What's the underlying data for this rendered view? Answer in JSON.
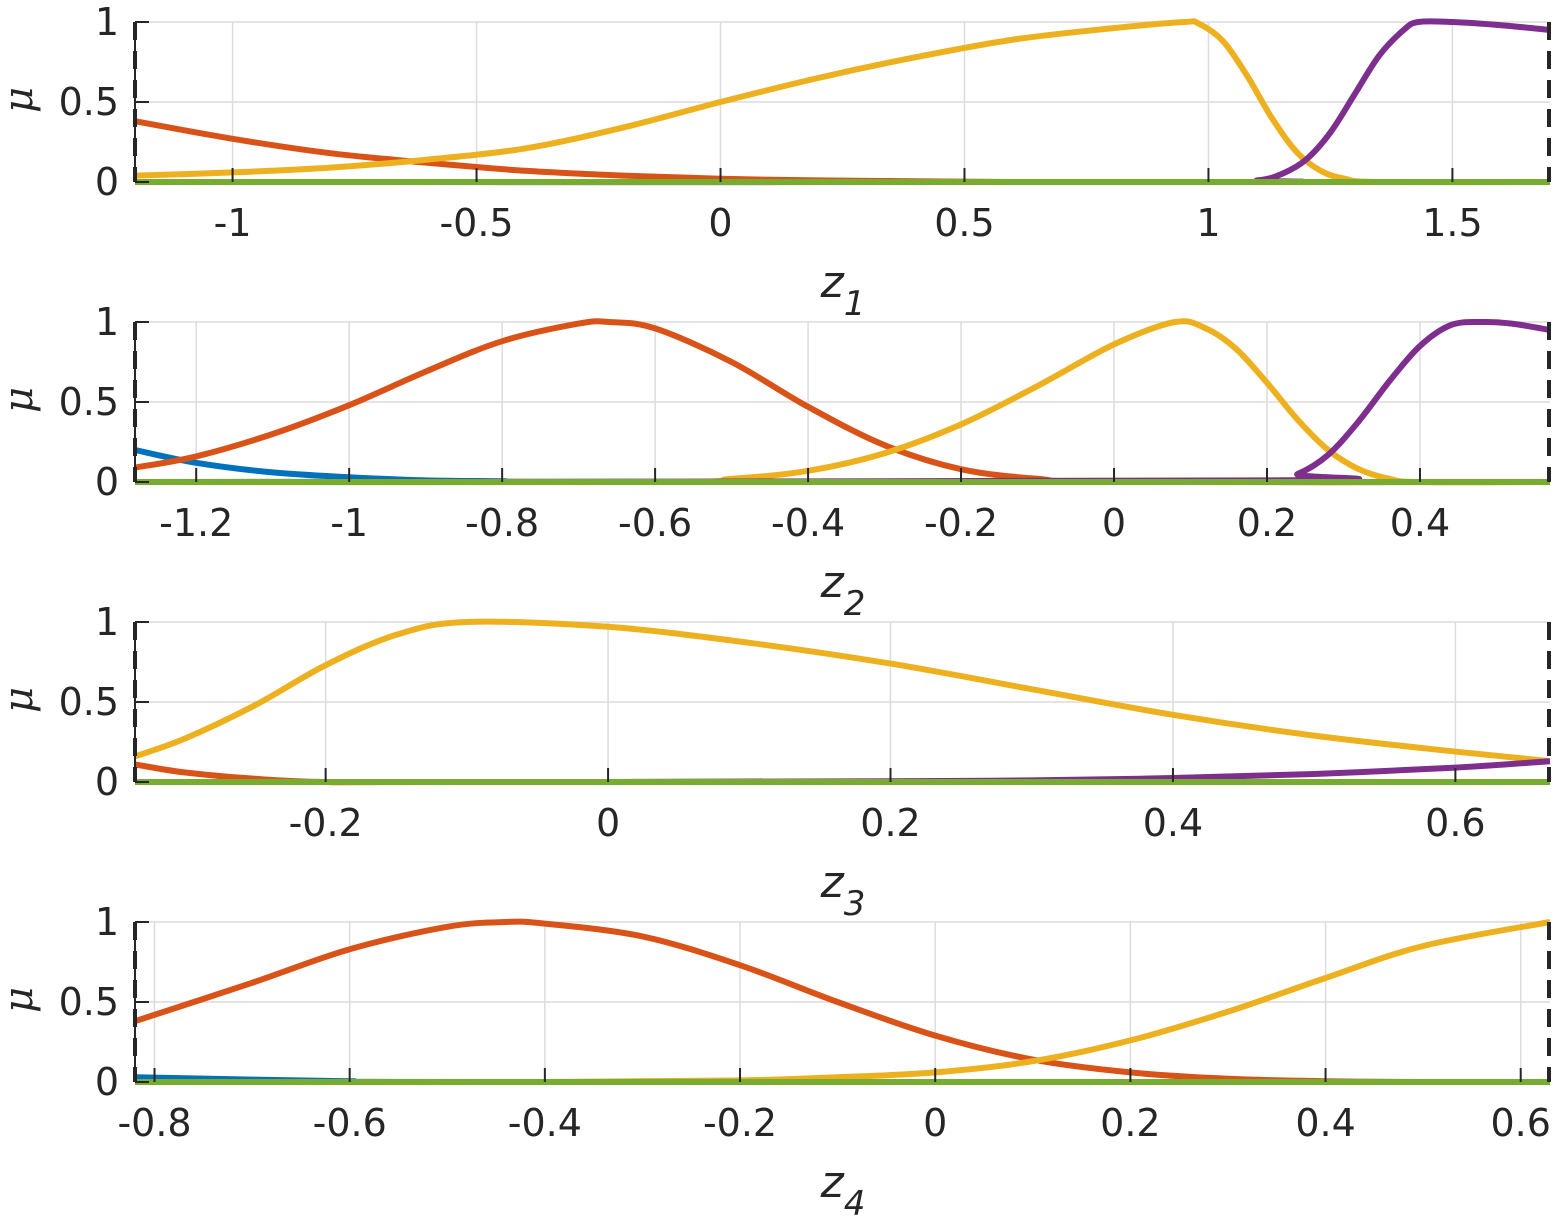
{
  "colors": {
    "grid": "#dcdcdc",
    "axis": "#262626",
    "series": [
      "#0072bd",
      "#d95319",
      "#edb120",
      "#7e2f8e",
      "#77ac30"
    ]
  },
  "chart_data": [
    {
      "type": "line",
      "xlabel": "z",
      "xlabel_sub": "1",
      "ylabel": "μ",
      "xlim": [
        -1.2,
        1.7
      ],
      "ylim": [
        0,
        1
      ],
      "xticks": [
        -1,
        -0.5,
        0,
        0.5,
        1,
        1.5
      ],
      "xticklabels": [
        "-1",
        "-0.5",
        "0",
        "0.5",
        "1",
        "1.5"
      ],
      "yticks": [
        0,
        0.5,
        1
      ],
      "yticklabels": [
        "0",
        "0.5",
        "1"
      ],
      "grid": true,
      "series": [
        {
          "x": [
            -1.2,
            1.7
          ],
          "y": [
            0,
            0
          ]
        },
        {
          "x": [
            -1.2,
            -1.0,
            -0.8,
            -0.6,
            -0.4,
            -0.2,
            0.0,
            0.2,
            0.4,
            0.6,
            1.0,
            1.7
          ],
          "y": [
            0.38,
            0.27,
            0.18,
            0.12,
            0.07,
            0.04,
            0.02,
            0.01,
            0.005,
            0.0,
            0.0,
            0.0
          ]
        },
        {
          "x": [
            -1.2,
            -1.0,
            -0.8,
            -0.6,
            -0.4,
            -0.2,
            0.0,
            0.2,
            0.4,
            0.6,
            0.8,
            0.95,
            0.98,
            1.03,
            1.08,
            1.13,
            1.18,
            1.23,
            1.28,
            1.35,
            1.7
          ],
          "y": [
            0.04,
            0.06,
            0.09,
            0.14,
            0.21,
            0.34,
            0.5,
            0.65,
            0.78,
            0.89,
            0.96,
            1.0,
            0.99,
            0.88,
            0.66,
            0.4,
            0.19,
            0.07,
            0.02,
            0.0,
            0.0
          ]
        },
        {
          "x": [
            -1.2,
            1.0,
            1.1,
            1.15,
            1.2,
            1.25,
            1.3,
            1.35,
            1.4,
            1.43,
            1.5,
            1.6,
            1.7
          ],
          "y": [
            0,
            0,
            0.01,
            0.05,
            0.14,
            0.31,
            0.55,
            0.79,
            0.95,
            1.0,
            1.0,
            0.98,
            0.95
          ]
        },
        {
          "x": [
            -1.2,
            1.7
          ],
          "y": [
            0,
            0
          ]
        }
      ]
    },
    {
      "type": "line",
      "xlabel": "z",
      "xlabel_sub": "2",
      "ylabel": "μ",
      "xlim": [
        -1.28,
        0.57
      ],
      "ylim": [
        0,
        1
      ],
      "xticks": [
        -1.2,
        -1,
        -0.8,
        -0.6,
        -0.4,
        -0.2,
        0,
        0.2,
        0.4
      ],
      "xticklabels": [
        "-1.2",
        "-1",
        "-0.8",
        "-0.6",
        "-0.4",
        "-0.2",
        "0",
        "0.2",
        "0.4"
      ],
      "yticks": [
        0,
        0.5,
        1
      ],
      "yticklabels": [
        "0",
        "0.5",
        "1"
      ],
      "grid": true,
      "series": [
        {
          "x": [
            -1.28,
            -1.2,
            -1.1,
            -1.0,
            -0.9,
            -0.8,
            -0.7,
            0.57
          ],
          "y": [
            0.2,
            0.12,
            0.06,
            0.03,
            0.01,
            0.005,
            0.0,
            0.0
          ]
        },
        {
          "x": [
            -1.28,
            -1.2,
            -1.1,
            -1.0,
            -0.9,
            -0.8,
            -0.7,
            -0.66,
            -0.6,
            -0.5,
            -0.4,
            -0.3,
            -0.2,
            -0.1,
            0.0,
            0.57
          ],
          "y": [
            0.09,
            0.16,
            0.3,
            0.48,
            0.69,
            0.88,
            0.99,
            1.0,
            0.96,
            0.75,
            0.47,
            0.23,
            0.08,
            0.02,
            0.0,
            0.0
          ]
        },
        {
          "x": [
            -1.28,
            -0.6,
            -0.5,
            -0.4,
            -0.3,
            -0.2,
            -0.1,
            0.0,
            0.08,
            0.12,
            0.16,
            0.2,
            0.24,
            0.28,
            0.32,
            0.36,
            0.4,
            0.57
          ],
          "y": [
            0,
            0.0,
            0.02,
            0.07,
            0.18,
            0.36,
            0.6,
            0.86,
            1.0,
            0.96,
            0.83,
            0.62,
            0.39,
            0.2,
            0.08,
            0.02,
            0.0,
            0.0
          ]
        },
        {
          "x": [
            -1.28,
            0.2,
            0.24,
            0.28,
            0.32,
            0.36,
            0.4,
            0.44,
            0.48,
            0.52,
            0.57
          ],
          "y": [
            0,
            0.01,
            0.05,
            0.17,
            0.38,
            0.63,
            0.85,
            0.98,
            1.0,
            0.99,
            0.95
          ]
        },
        {
          "x": [
            -1.28,
            0.57
          ],
          "y": [
            0,
            0
          ]
        }
      ]
    },
    {
      "type": "line",
      "xlabel": "z",
      "xlabel_sub": "3",
      "ylabel": "μ",
      "xlim": [
        -0.335,
        0.667
      ],
      "ylim": [
        0,
        1
      ],
      "xticks": [
        -0.2,
        0,
        0.2,
        0.4,
        0.6
      ],
      "xticklabels": [
        "-0.2",
        "0",
        "0.2",
        "0.4",
        "0.6"
      ],
      "yticks": [
        0,
        0.5,
        1
      ],
      "yticklabels": [
        "0",
        "0.5",
        "1"
      ],
      "grid": true,
      "series": [
        {
          "x": [
            -0.335,
            0.667
          ],
          "y": [
            0,
            0
          ]
        },
        {
          "x": [
            -0.335,
            -0.3,
            -0.25,
            -0.2,
            -0.1,
            0.667
          ],
          "y": [
            0.11,
            0.06,
            0.02,
            0.0,
            0.0,
            0.0
          ]
        },
        {
          "x": [
            -0.335,
            -0.3,
            -0.25,
            -0.2,
            -0.15,
            -0.1,
            0.0,
            0.1,
            0.2,
            0.3,
            0.4,
            0.5,
            0.6,
            0.667
          ],
          "y": [
            0.16,
            0.27,
            0.48,
            0.73,
            0.92,
            1.0,
            0.97,
            0.87,
            0.74,
            0.58,
            0.42,
            0.29,
            0.19,
            0.13
          ]
        },
        {
          "x": [
            -0.335,
            0.0,
            0.2,
            0.3,
            0.4,
            0.5,
            0.6,
            0.667
          ],
          "y": [
            0,
            0.0,
            0.005,
            0.01,
            0.025,
            0.05,
            0.09,
            0.13
          ]
        },
        {
          "x": [
            -0.335,
            0.667
          ],
          "y": [
            0,
            0
          ]
        }
      ]
    },
    {
      "type": "line",
      "xlabel": "z",
      "xlabel_sub": "4",
      "ylabel": "μ",
      "xlim": [
        -0.82,
        0.63
      ],
      "ylim": [
        0,
        1
      ],
      "xticks": [
        -0.8,
        -0.6,
        -0.4,
        -0.2,
        0,
        0.2,
        0.4,
        0.6
      ],
      "xticklabels": [
        "-0.8",
        "-0.6",
        "-0.4",
        "-0.2",
        "0",
        "0.2",
        "0.4",
        "0.6"
      ],
      "yticks": [
        0,
        0.5,
        1
      ],
      "yticklabels": [
        "0",
        "0.5",
        "1"
      ],
      "grid": true,
      "series": [
        {
          "x": [
            -0.82,
            -0.7,
            -0.6,
            -0.5,
            0.63
          ],
          "y": [
            0.03,
            0.015,
            0.005,
            0.0,
            0.0
          ]
        },
        {
          "x": [
            -0.82,
            -0.7,
            -0.6,
            -0.5,
            -0.44,
            -0.4,
            -0.3,
            -0.2,
            -0.1,
            0.0,
            0.1,
            0.2,
            0.3,
            0.4,
            0.5,
            0.63
          ],
          "y": [
            0.38,
            0.62,
            0.83,
            0.97,
            1.0,
            0.99,
            0.91,
            0.73,
            0.5,
            0.29,
            0.14,
            0.06,
            0.02,
            0.005,
            0.0,
            0.0
          ]
        },
        {
          "x": [
            -0.82,
            -0.4,
            -0.2,
            -0.1,
            0.0,
            0.1,
            0.2,
            0.3,
            0.4,
            0.5,
            0.63
          ],
          "y": [
            0.0,
            0.0,
            0.01,
            0.03,
            0.06,
            0.13,
            0.26,
            0.44,
            0.65,
            0.85,
            1.0
          ]
        },
        {
          "x": [
            -0.82,
            0.63
          ],
          "y": [
            0,
            0
          ]
        },
        {
          "x": [
            -0.82,
            0.63
          ],
          "y": [
            0,
            0
          ]
        }
      ]
    }
  ]
}
